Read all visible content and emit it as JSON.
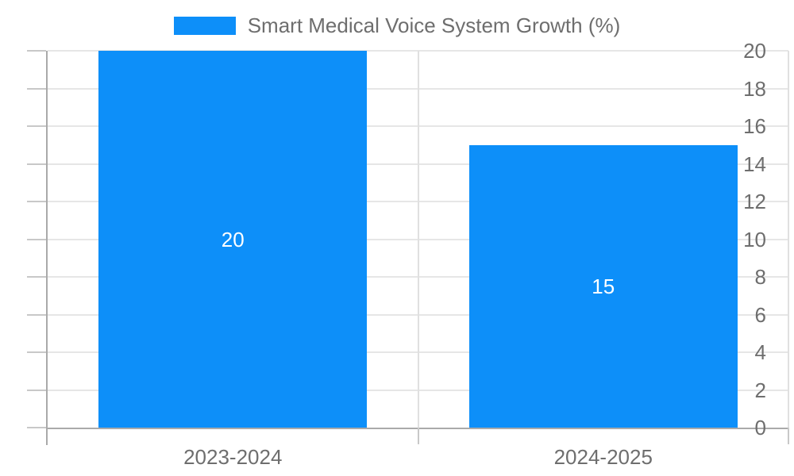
{
  "legend": {
    "label": "Smart Medical Voice System Growth (%)"
  },
  "chart_data": {
    "type": "bar",
    "title": "Smart Medical Voice System Growth (%)",
    "categories": [
      "2023-2024",
      "2024-2025"
    ],
    "series": [
      {
        "name": "Smart Medical Voice System Growth (%)",
        "values": [
          20,
          15
        ]
      }
    ],
    "data_labels": [
      "20",
      "15"
    ],
    "xlabel": "",
    "ylabel": "",
    "ylim": [
      0,
      20
    ],
    "yticks": [
      0,
      2,
      4,
      6,
      8,
      10,
      12,
      14,
      16,
      18,
      20
    ],
    "grid": true,
    "legend_position": "top",
    "bar_width_fraction": 0.725,
    "colors": {
      "bar": "#0d8ff9",
      "bar_label": "#ffffff",
      "axis_line": "#aaaaaa",
      "tick_line": "#c8c8c8",
      "grid_h": "#e6e6e6",
      "grid_v": "#e0e0e0",
      "text": "#6e6e6e"
    }
  }
}
